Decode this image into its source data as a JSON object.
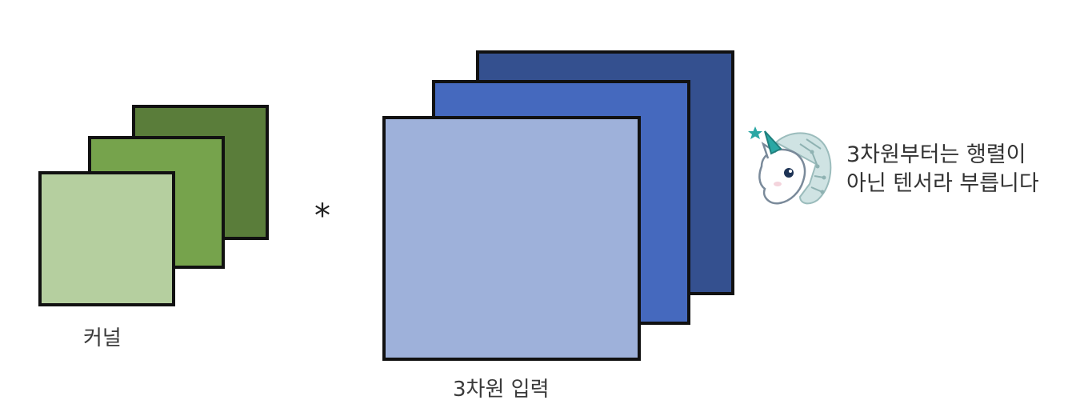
{
  "diagram": {
    "kernel": {
      "label": "커널",
      "layer_colors": [
        "#b5cf9f",
        "#76a34c",
        "#5a7d3a"
      ]
    },
    "operator": "*",
    "input": {
      "label": "3차원 입력",
      "layer_colors": [
        "#9eb1da",
        "#4569be",
        "#34508f"
      ]
    },
    "mascot": {
      "icon": "unicorn-mascot-icon",
      "speech_lines": [
        "3차원부터는 행렬이",
        "아닌 텐서라 부릅니다"
      ]
    }
  }
}
